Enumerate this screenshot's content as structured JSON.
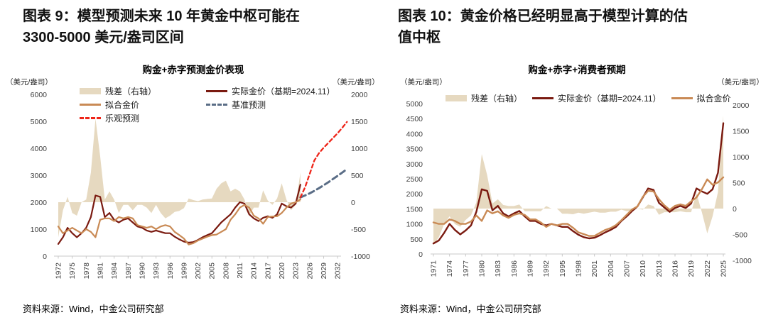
{
  "figures": [
    {
      "id": "figure-9",
      "heading_lines": [
        "图表 9：模型预测未来 10 年黄金中枢可能在",
        "3300-5000 美元/盎司区间"
      ],
      "source": "资料来源：Wind，中金公司研究部"
    },
    {
      "id": "figure-10",
      "heading_lines": [
        "图表 10：黄金价格已经明显高于模型计算的估",
        "值中枢"
      ],
      "source": "资料来源：Wind，中金公司研究部"
    }
  ],
  "colors": {
    "actual": "#7A1A10",
    "fitted": "#C98A55",
    "residual": "#E6D9C0",
    "baseline_forecast": "#5A6D86",
    "optimistic_forecast": "#EE2418",
    "axis_line": "#C9C9C9",
    "tick_text": "#404040"
  },
  "chart_data": [
    {
      "id": "gold-model-forecast",
      "type": "line",
      "title": "购金+赤字预测金价表现",
      "unit_left": "（美元/盎司）",
      "unit_right": "（美元/盎司）",
      "left_axis": {
        "min": 0,
        "max": 6000,
        "ticks": [
          0,
          1000,
          2000,
          3000,
          4000,
          5000,
          6000
        ]
      },
      "right_axis": {
        "min": -1000,
        "max": 2000,
        "ticks": [
          -1000,
          -500,
          0,
          500,
          1000,
          1500,
          2000
        ]
      },
      "x_ticks": [
        1972,
        1975,
        1978,
        1981,
        1984,
        1987,
        1990,
        1993,
        1996,
        1999,
        2002,
        2005,
        2008,
        2011,
        2014,
        2017,
        2020,
        2023,
        2026,
        2029,
        2032
      ],
      "legend": [
        {
          "label": "残差（右轴）",
          "kind": "area",
          "color": "#E6D9C0"
        },
        {
          "label": "实际金价（基期=2024.11）",
          "kind": "line",
          "color": "#7A1A10"
        },
        {
          "label": "拟合金价",
          "kind": "line",
          "color": "#C98A55"
        },
        {
          "label": "基准预测",
          "kind": "dashed",
          "color": "#5A6D86"
        },
        {
          "label": "乐观预测",
          "kind": "dashed",
          "color": "#EE2418"
        }
      ],
      "series": [
        {
          "name": "残差（右轴）",
          "kind": "area",
          "axis": "right",
          "color": "#E6D9C0",
          "x_start": 1972,
          "values": [
            -650,
            -150,
            100,
            -200,
            -250,
            0,
            50,
            550,
            1550,
            850,
            50,
            200,
            50,
            -200,
            -50,
            -50,
            -150,
            -50,
            -50,
            -100,
            -200,
            -50,
            -200,
            -300,
            -250,
            -180,
            -160,
            -110,
            70,
            40,
            20,
            50,
            60,
            70,
            250,
            350,
            400,
            200,
            250,
            200,
            50,
            -250,
            -100,
            -100,
            220,
            30,
            -50,
            70,
            350,
            50,
            -150,
            -50,
            550
          ]
        },
        {
          "name": "实际金价（基期=2024.11）",
          "kind": "line",
          "axis": "left",
          "color": "#7A1A10",
          "width": 2.2,
          "x_start": 1972,
          "values": [
            450,
            700,
            1050,
            850,
            700,
            850,
            1050,
            1450,
            2250,
            2200,
            1450,
            1600,
            1350,
            1250,
            1350,
            1400,
            1250,
            1100,
            1050,
            950,
            900,
            950,
            900,
            850,
            850,
            720,
            620,
            540,
            500,
            520,
            600,
            700,
            780,
            850,
            1050,
            1250,
            1400,
            1550,
            1800,
            2000,
            1950,
            1550,
            1400,
            1300,
            1420,
            1480,
            1420,
            1550,
            1950,
            1850,
            1800,
            1950,
            2650
          ]
        },
        {
          "name": "拟合金价",
          "kind": "line",
          "axis": "left",
          "color": "#C98A55",
          "width": 2.2,
          "x_start": 1972,
          "values": [
            1100,
            850,
            950,
            1050,
            950,
            850,
            1000,
            900,
            700,
            1350,
            1400,
            1400,
            1300,
            1450,
            1400,
            1450,
            1400,
            1150,
            1100,
            1050,
            1100,
            1000,
            1100,
            1150,
            1100,
            900,
            780,
            650,
            430,
            480,
            580,
            650,
            720,
            780,
            800,
            900,
            1000,
            1350,
            1550,
            1800,
            1900,
            1800,
            1500,
            1400,
            1200,
            1450,
            1470,
            1480,
            1600,
            1800,
            1950,
            2000,
            2100
          ]
        },
        {
          "name": "基准预测",
          "kind": "line",
          "axis": "left",
          "color": "#5A6D86",
          "width": 3,
          "dash": "8 5",
          "x_start": 2024,
          "values": [
            2180,
            2250,
            2330,
            2420,
            2520,
            2630,
            2740,
            2860,
            2980,
            3100,
            3230
          ]
        },
        {
          "name": "乐观预测",
          "kind": "line",
          "axis": "left",
          "color": "#EE2418",
          "width": 2.3,
          "dash": "5 4",
          "x_start": 2024,
          "values": [
            2180,
            2550,
            3050,
            3550,
            3820,
            4020,
            4200,
            4380,
            4560,
            4760,
            4980
          ]
        }
      ]
    },
    {
      "id": "gold-model-valuation",
      "type": "line",
      "title": "购金+赤字+消费者预期",
      "unit_left": "（美元/盎司）",
      "unit_right": "（美元/盎司）",
      "left_axis": {
        "min": 0,
        "max": 5000,
        "ticks": [
          0,
          500,
          1000,
          1500,
          2000,
          2500,
          3000,
          3500,
          4000,
          4500,
          5000
        ]
      },
      "right_axis": {
        "min": -1000,
        "max": 2000,
        "ticks": [
          -1000,
          -500,
          0,
          500,
          1000,
          1500,
          2000
        ]
      },
      "x_ticks": [
        1971,
        1974,
        1977,
        1980,
        1983,
        1986,
        1989,
        1992,
        1995,
        1998,
        2001,
        2004,
        2007,
        2010,
        2013,
        2016,
        2019,
        2022,
        2025
      ],
      "legend": [
        {
          "label": "残差（右轴）",
          "kind": "area",
          "color": "#E6D9C0"
        },
        {
          "label": "实际金价（基期=2024.11）",
          "kind": "line",
          "color": "#7A1A10"
        },
        {
          "label": "拟合金价",
          "kind": "line",
          "color": "#C98A55"
        }
      ],
      "series": [
        {
          "name": "残差（右轴）",
          "kind": "area",
          "axis": "right",
          "color": "#E6D9C0",
          "x_start": 1971,
          "values": [
            -700,
            -550,
            -300,
            -150,
            -300,
            -350,
            -220,
            -130,
            120,
            1050,
            650,
            100,
            180,
            70,
            50,
            50,
            80,
            -50,
            -50,
            -50,
            -50,
            50,
            0,
            0,
            -100,
            -100,
            -110,
            -80,
            -100,
            -80,
            -60,
            -80,
            -80,
            -60,
            -60,
            -20,
            -50,
            -50,
            0,
            -20,
            80,
            50,
            -120,
            -70,
            -70,
            -70,
            -50,
            -70,
            -70,
            300,
            -70,
            -480,
            -150,
            320,
            1800
          ]
        },
        {
          "name": "实际金价（基期=2024.11）",
          "kind": "line",
          "axis": "left",
          "color": "#7A1A10",
          "width": 2.4,
          "x_start": 1971,
          "values": [
            350,
            450,
            700,
            1000,
            800,
            650,
            780,
            950,
            1400,
            2150,
            2100,
            1450,
            1600,
            1350,
            1250,
            1350,
            1430,
            1250,
            1100,
            1100,
            1000,
            950,
            1000,
            950,
            900,
            900,
            760,
            640,
            560,
            520,
            540,
            620,
            720,
            800,
            900,
            1100,
            1250,
            1430,
            1580,
            1880,
            2180,
            2130,
            1700,
            1550,
            1400,
            1530,
            1600,
            1530,
            1680,
            2180,
            2080,
            2000,
            2150,
            2700,
            4350
          ]
        },
        {
          "name": "拟合金价",
          "kind": "line",
          "axis": "left",
          "color": "#C98A55",
          "width": 2.4,
          "x_start": 1971,
          "values": [
            1050,
            1000,
            1000,
            1150,
            1100,
            1000,
            1000,
            1080,
            1280,
            1100,
            1450,
            1350,
            1420,
            1280,
            1200,
            1300,
            1350,
            1300,
            1150,
            1150,
            1050,
            900,
            1000,
            950,
            1000,
            1000,
            870,
            720,
            660,
            600,
            600,
            700,
            800,
            860,
            960,
            1120,
            1300,
            1480,
            1580,
            1900,
            2100,
            2080,
            1820,
            1620,
            1470,
            1600,
            1650,
            1600,
            1750,
            1880,
            2150,
            2480,
            2300,
            2380,
            2550
          ]
        }
      ]
    }
  ]
}
